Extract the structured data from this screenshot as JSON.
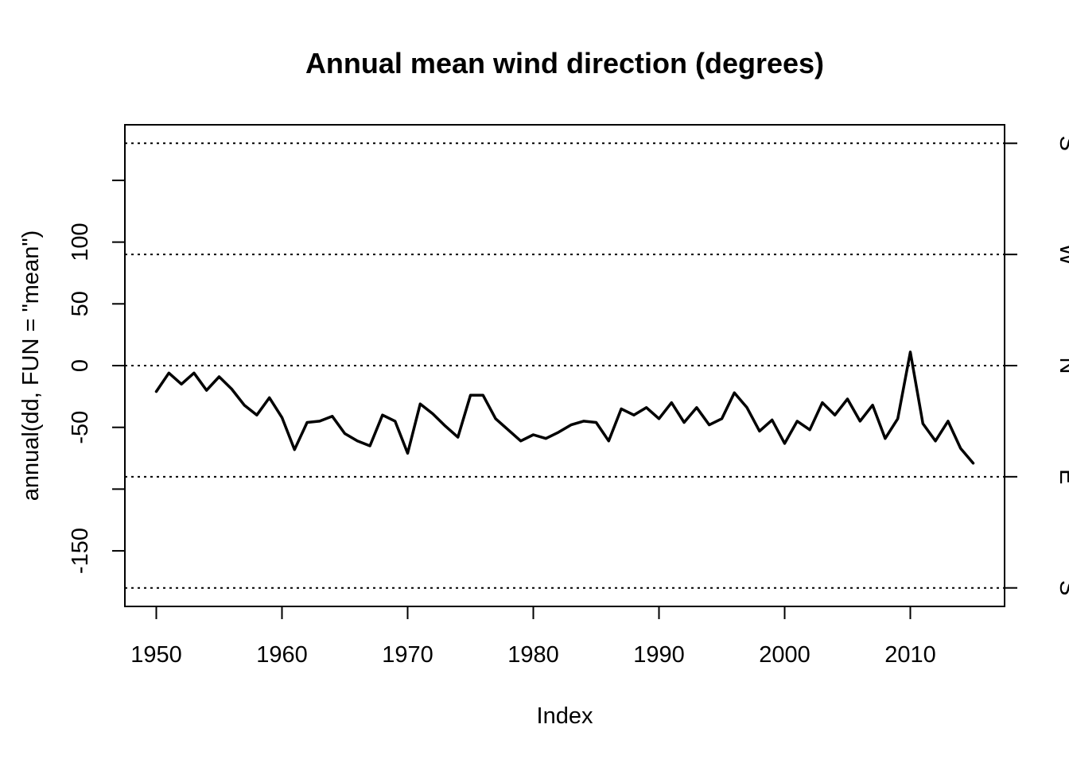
{
  "chart_data": {
    "type": "line",
    "title": "Annual mean wind direction (degrees)",
    "xlabel": "Index",
    "ylabel": "annual(dd, FUN = \"mean\")",
    "xlim": [
      1947.5,
      2017.5
    ],
    "ylim": [
      -195,
      195
    ],
    "x_ticks": [
      1950,
      1960,
      1970,
      1980,
      1990,
      2000,
      2010
    ],
    "y_ticks": [
      -150,
      -100,
      -50,
      0,
      50,
      100,
      150
    ],
    "y_tick_labels": [
      "-150",
      "",
      "-50",
      "0",
      "50",
      "100",
      ""
    ],
    "right_axis": {
      "ticks": [
        {
          "value": -180,
          "label": "S"
        },
        {
          "value": -90,
          "label": "E"
        },
        {
          "value": 0,
          "label": "N"
        },
        {
          "value": 90,
          "label": "W"
        },
        {
          "value": 180,
          "label": "S"
        }
      ]
    },
    "reference_lines": [
      -180,
      -90,
      0,
      90,
      180
    ],
    "grid": false,
    "series": [
      {
        "x": [
          1950,
          1951,
          1952,
          1953,
          1954,
          1955,
          1956,
          1957,
          1958,
          1959,
          1960,
          1961,
          1962,
          1963,
          1964,
          1965,
          1966,
          1967,
          1968,
          1969,
          1970,
          1971,
          1972,
          1973,
          1974,
          1975,
          1976,
          1977,
          1978,
          1979,
          1980,
          1981,
          1982,
          1983,
          1984,
          1985,
          1986,
          1987,
          1988,
          1989,
          1990,
          1991,
          1992,
          1993,
          1994,
          1995,
          1996,
          1997,
          1998,
          1999,
          2000,
          2001,
          2002,
          2003,
          2004,
          2005,
          2006,
          2007,
          2008,
          2009,
          2010,
          2011,
          2012,
          2013,
          2014,
          2015
        ],
        "values": [
          -21,
          -6,
          -15,
          -6,
          -20,
          -9,
          -19,
          -32,
          -40,
          -26,
          -42,
          -68,
          -46,
          -45,
          -41,
          -55,
          -61,
          -65,
          -40,
          -45,
          -71,
          -31,
          -39,
          -49,
          -58,
          -24,
          -24,
          -43,
          -52,
          -61,
          -56,
          -59,
          -54,
          -48,
          -45,
          -46,
          -61,
          -35,
          -40,
          -34,
          -43,
          -30,
          -46,
          -34,
          -48,
          -43,
          -22,
          -34,
          -53,
          -44,
          -63,
          -45,
          -52,
          -30,
          -40,
          -27,
          -45,
          -32,
          -59,
          -43,
          11,
          -47,
          -61,
          -45,
          -67,
          -79
        ]
      }
    ]
  }
}
